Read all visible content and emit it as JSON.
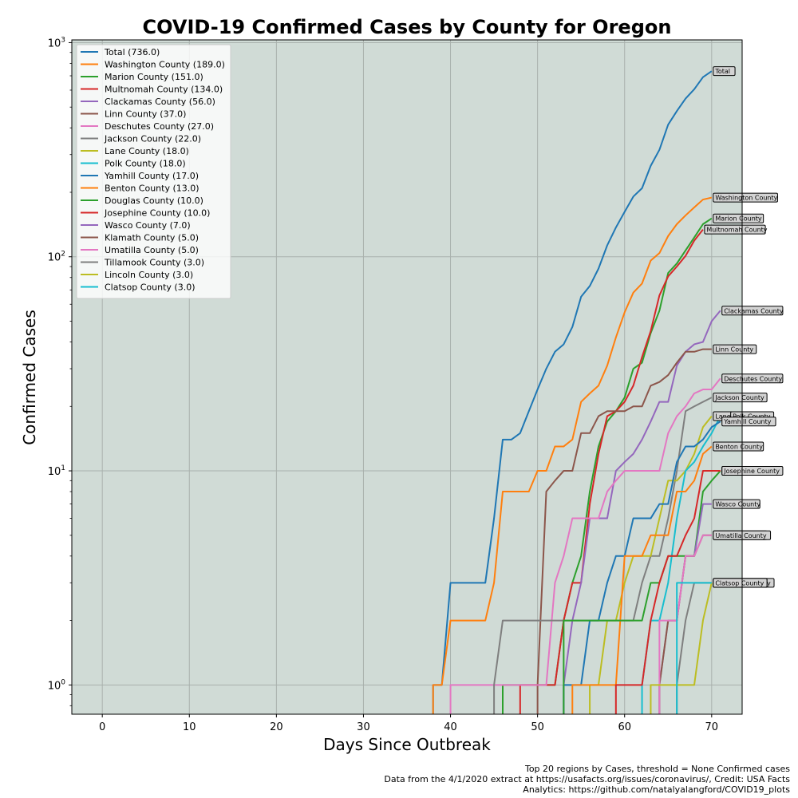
{
  "chart_data": {
    "type": "line",
    "title": "COVID-19  Confirmed Cases by County for Oregon",
    "xlabel": "Days Since Outbreak",
    "ylabel": "Confirmed Cases",
    "y_scale": "log",
    "xlim": [
      -3.5,
      73.5
    ],
    "ylim": [
      0.73,
      1030
    ],
    "x_ticks": [
      0,
      10,
      20,
      30,
      40,
      50,
      60,
      70
    ],
    "y_ticks": [
      {
        "value": 1,
        "base": "10",
        "exp": "0"
      },
      {
        "value": 10,
        "base": "10",
        "exp": "1"
      },
      {
        "value": 100,
        "base": "10",
        "exp": "2"
      },
      {
        "value": 1000,
        "base": "10",
        "exp": "3"
      }
    ],
    "grid": true,
    "legend_position": "top-left",
    "plot_background": "#d0dbd6",
    "series": [
      {
        "name": "Total (736.0)",
        "label": "Total",
        "color": "#1f77b4",
        "start": 38,
        "values": [
          1,
          1,
          3,
          3,
          3,
          3,
          3,
          6,
          14,
          14,
          15,
          19,
          24,
          30,
          36,
          39,
          47,
          65,
          73,
          88,
          113,
          137,
          162,
          191,
          209,
          266,
          316,
          414,
          479,
          548,
          606,
          690,
          736
        ]
      },
      {
        "name": "Washington County (189.0)",
        "label": "Washington County",
        "color": "#ff7f0e",
        "start": 38,
        "values": [
          1,
          1,
          2,
          2,
          2,
          2,
          2,
          3,
          8,
          8,
          8,
          8,
          10,
          10,
          13,
          13,
          14,
          21,
          23,
          25,
          31,
          42,
          55,
          68,
          75,
          96,
          104,
          125,
          142,
          156,
          170,
          185,
          189
        ]
      },
      {
        "name": "Marion County (151.0)",
        "label": "Marion County",
        "color": "#2ca02c",
        "start": 46,
        "values": [
          1,
          1,
          1,
          1,
          1,
          1,
          1,
          2,
          3,
          4,
          8,
          13,
          17,
          19,
          22,
          30,
          32,
          44,
          56,
          84,
          93,
          107,
          123,
          142,
          151
        ]
      },
      {
        "name": "Multnomah County (134.0)",
        "label": "Multnomah County",
        "color": "#d62728",
        "start": 48,
        "values": [
          1,
          1,
          1,
          1,
          1,
          2,
          3,
          3,
          7,
          12,
          18,
          19,
          21,
          25,
          34,
          45,
          66,
          81,
          90,
          101,
          119,
          134
        ]
      },
      {
        "name": "Clackamas County (56.0)",
        "label": "Clackamas County",
        "color": "#9467bd",
        "start": 53,
        "values": [
          1,
          2,
          3,
          6,
          6,
          6,
          10,
          11,
          12,
          14,
          17,
          21,
          21,
          31,
          36,
          39,
          40,
          50,
          56
        ]
      },
      {
        "name": "Linn County (37.0)",
        "label": "Linn County",
        "color": "#8c564b",
        "start": 50,
        "values": [
          1,
          8,
          9,
          10,
          10,
          15,
          15,
          18,
          19,
          19,
          19,
          20,
          20,
          25,
          26,
          28,
          32,
          36,
          36,
          37,
          37
        ]
      },
      {
        "name": "Deschutes County (27.0)",
        "label": "Deschutes County",
        "color": "#e377c2",
        "start": 40,
        "values": [
          1,
          1,
          1,
          1,
          1,
          1,
          1,
          1,
          1,
          1,
          1,
          1,
          3,
          4,
          6,
          6,
          6,
          6,
          8,
          9,
          10,
          10,
          10,
          10,
          10,
          15,
          18,
          20,
          23,
          24,
          24,
          27
        ]
      },
      {
        "name": "Jackson County (22.0)",
        "label": "Jackson County",
        "color": "#7f7f7f",
        "start": 45,
        "values": [
          1,
          2,
          2,
          2,
          2,
          2,
          2,
          2,
          2,
          2,
          2,
          2,
          2,
          2,
          2,
          2,
          2,
          3,
          4,
          4,
          6,
          10,
          19,
          20,
          21,
          22
        ]
      },
      {
        "name": "Lane County (18.0)",
        "label": "Lane County",
        "color": "#bcbd22",
        "start": 56,
        "values": [
          1,
          1,
          2,
          2,
          3,
          4,
          4,
          4,
          6,
          9,
          9,
          10,
          12,
          16,
          18
        ]
      },
      {
        "name": "Polk County (18.0)",
        "label": "Polk County",
        "color": "#17becf",
        "start": 62,
        "values": [
          1,
          2,
          2,
          3,
          6,
          10,
          11,
          13,
          15,
          18,
          18
        ]
      },
      {
        "name": "Yamhill County (17.0)",
        "label": "Yamhill County",
        "color": "#1f77b4",
        "start": 53,
        "values": [
          1,
          1,
          1,
          2,
          2,
          3,
          4,
          4,
          6,
          6,
          6,
          7,
          7,
          11,
          13,
          13,
          14,
          16,
          17
        ]
      },
      {
        "name": "Benton County (13.0)",
        "label": "Benton County",
        "color": "#ff7f0e",
        "start": 54,
        "values": [
          1,
          1,
          1,
          1,
          1,
          1,
          4,
          4,
          4,
          5,
          5,
          5,
          8,
          8,
          9,
          12,
          13
        ]
      },
      {
        "name": "Douglas County (10.0)",
        "label": "Douglas County",
        "color": "#2ca02c",
        "start": 53,
        "values": [
          2,
          2,
          2,
          2,
          2,
          2,
          2,
          2,
          2,
          2,
          3,
          3,
          4,
          4,
          4,
          4,
          8,
          9,
          10
        ]
      },
      {
        "name": "Josephine County (10.0)",
        "label": "Josephine County",
        "color": "#d62728",
        "start": 59,
        "values": [
          1,
          1,
          1,
          1,
          2,
          3,
          4,
          4,
          5,
          6,
          10,
          10,
          10
        ]
      },
      {
        "name": "Wasco County (7.0)",
        "label": "Wasco County",
        "color": "#9467bd",
        "start": 64,
        "values": [
          1,
          2,
          2,
          4,
          4,
          7,
          7
        ]
      },
      {
        "name": "Klamath County (5.0)",
        "label": "Klamath County",
        "color": "#8c564b",
        "start": 64,
        "values": [
          1,
          2,
          2,
          4,
          4,
          5,
          5
        ]
      },
      {
        "name": "Umatilla County (5.0)",
        "label": "Umatilla County",
        "color": "#e377c2",
        "start": 64,
        "values": [
          2,
          2,
          2,
          4,
          4,
          5,
          5
        ]
      },
      {
        "name": "Tillamook County (3.0)",
        "label": "Tillamook County",
        "color": "#7f7f7f",
        "start": 66,
        "values": [
          1,
          2,
          3,
          3,
          3
        ]
      },
      {
        "name": "Lincoln County (3.0)",
        "label": "Lincoln County",
        "color": "#bcbd22",
        "start": 63,
        "values": [
          1,
          1,
          1,
          1,
          1,
          1,
          2,
          3
        ]
      },
      {
        "name": "Clatsop County (3.0)",
        "label": "Clatsop County",
        "color": "#17becf",
        "start": 66,
        "values": [
          3,
          3,
          3,
          3,
          3
        ]
      }
    ]
  },
  "footer": {
    "line1": "Top 20 regions by Cases, threshold = None Confirmed cases",
    "line2": "Data from the 4/1/2020 extract at https://usafacts.org/issues/coronavirus/, Credit: USA Facts",
    "line3": "Analytics: https://github.com/natalyalangford/COVID19_plots"
  }
}
